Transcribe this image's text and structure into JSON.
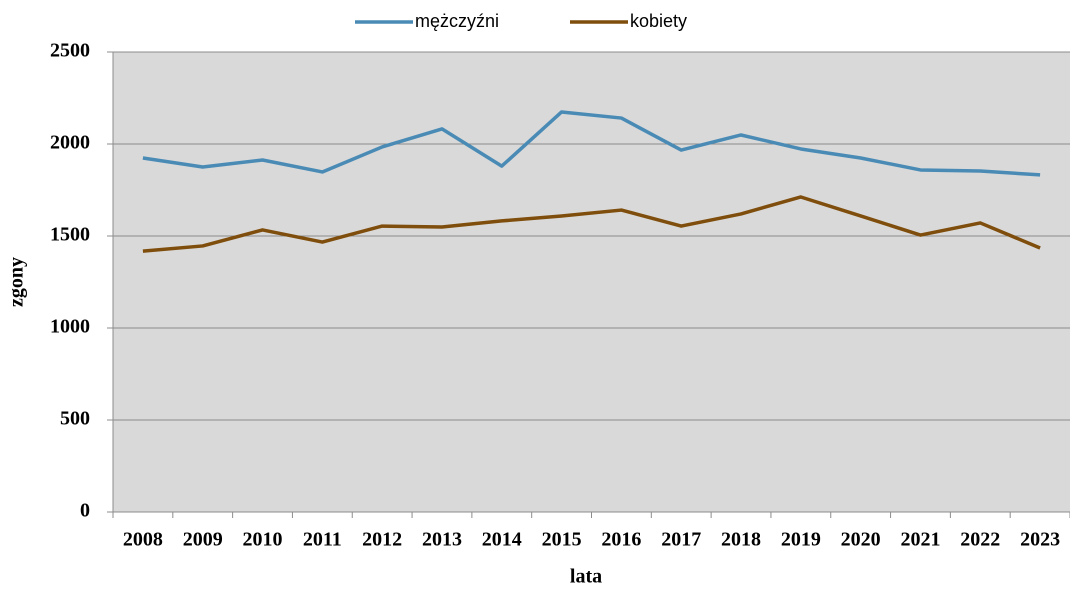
{
  "chart_data": {
    "type": "line",
    "x_label": "lata",
    "y_label": "zgony",
    "categories": [
      "2008",
      "2009",
      "2010",
      "2011",
      "2012",
      "2013",
      "2014",
      "2015",
      "2016",
      "2017",
      "2018",
      "2019",
      "2020",
      "2021",
      "2022",
      "2023"
    ],
    "series": [
      {
        "name": "mężczyźni",
        "color": "#4a8bb6",
        "values": [
          1924,
          1875,
          1913,
          1848,
          1984,
          2082,
          1880,
          2174,
          2141,
          1967,
          2049,
          1973,
          1924,
          1859,
          1853,
          1832
        ]
      },
      {
        "name": "kobiety",
        "color": "#7f4e0c",
        "values": [
          1418,
          1446,
          1533,
          1467,
          1554,
          1549,
          1582,
          1609,
          1641,
          1554,
          1620,
          1712,
          1609,
          1505,
          1571,
          1435
        ]
      }
    ],
    "ylim": [
      0,
      2500
    ],
    "yticks": [
      0,
      500,
      1000,
      1500,
      2000,
      2500
    ],
    "grid": true,
    "legend": "top"
  }
}
